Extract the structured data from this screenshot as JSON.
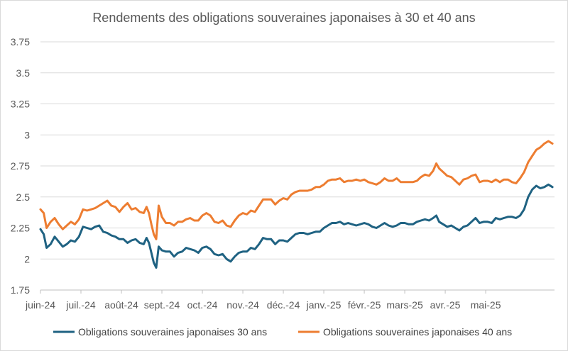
{
  "chart_data": {
    "type": "line",
    "title": "Rendements des obligations souveraines japonaises à 30 et 40 ans",
    "xlabel": "",
    "ylabel": "",
    "ylim": [
      1.75,
      3.75
    ],
    "y_ticks": [
      "1.75",
      "2",
      "2.25",
      "2.5",
      "2.75",
      "3",
      "3.25",
      "3.5",
      "3.75"
    ],
    "x_tick_labels": [
      "juin-24",
      "juil.-24",
      "août-24",
      "sept.-24",
      "oct.-24",
      "nov.-24",
      "déc.-24",
      "janv.-25",
      "févr.-25",
      "mars-25",
      "avr.-25",
      "mai-25"
    ],
    "grid": true,
    "legend_position": "bottom",
    "x_domain": [
      0,
      12.7
    ],
    "series": [
      {
        "name": "Obligations souveraines japonaises 30 ans",
        "color": "#1f6282",
        "points": [
          [
            0.0,
            2.24
          ],
          [
            0.08,
            2.2
          ],
          [
            0.15,
            2.09
          ],
          [
            0.25,
            2.12
          ],
          [
            0.35,
            2.18
          ],
          [
            0.45,
            2.14
          ],
          [
            0.55,
            2.1
          ],
          [
            0.65,
            2.12
          ],
          [
            0.75,
            2.15
          ],
          [
            0.85,
            2.14
          ],
          [
            0.95,
            2.18
          ],
          [
            1.05,
            2.26
          ],
          [
            1.15,
            2.25
          ],
          [
            1.25,
            2.24
          ],
          [
            1.35,
            2.26
          ],
          [
            1.45,
            2.27
          ],
          [
            1.55,
            2.22
          ],
          [
            1.65,
            2.21
          ],
          [
            1.75,
            2.19
          ],
          [
            1.85,
            2.18
          ],
          [
            1.95,
            2.16
          ],
          [
            2.05,
            2.16
          ],
          [
            2.15,
            2.13
          ],
          [
            2.25,
            2.15
          ],
          [
            2.35,
            2.16
          ],
          [
            2.45,
            2.13
          ],
          [
            2.55,
            2.12
          ],
          [
            2.62,
            2.17
          ],
          [
            2.68,
            2.13
          ],
          [
            2.74,
            2.05
          ],
          [
            2.8,
            1.97
          ],
          [
            2.86,
            1.93
          ],
          [
            2.92,
            2.1
          ],
          [
            3.0,
            2.07
          ],
          [
            3.1,
            2.06
          ],
          [
            3.2,
            2.06
          ],
          [
            3.3,
            2.02
          ],
          [
            3.4,
            2.05
          ],
          [
            3.5,
            2.06
          ],
          [
            3.6,
            2.09
          ],
          [
            3.7,
            2.08
          ],
          [
            3.8,
            2.07
          ],
          [
            3.9,
            2.05
          ],
          [
            4.0,
            2.09
          ],
          [
            4.1,
            2.1
          ],
          [
            4.2,
            2.08
          ],
          [
            4.3,
            2.04
          ],
          [
            4.4,
            2.03
          ],
          [
            4.5,
            2.04
          ],
          [
            4.6,
            2.0
          ],
          [
            4.7,
            1.98
          ],
          [
            4.8,
            2.02
          ],
          [
            4.9,
            2.05
          ],
          [
            5.0,
            2.06
          ],
          [
            5.1,
            2.06
          ],
          [
            5.2,
            2.09
          ],
          [
            5.3,
            2.08
          ],
          [
            5.4,
            2.12
          ],
          [
            5.5,
            2.17
          ],
          [
            5.6,
            2.16
          ],
          [
            5.7,
            2.16
          ],
          [
            5.8,
            2.12
          ],
          [
            5.9,
            2.15
          ],
          [
            6.0,
            2.15
          ],
          [
            6.1,
            2.14
          ],
          [
            6.2,
            2.17
          ],
          [
            6.3,
            2.2
          ],
          [
            6.4,
            2.21
          ],
          [
            6.5,
            2.21
          ],
          [
            6.6,
            2.2
          ],
          [
            6.7,
            2.21
          ],
          [
            6.8,
            2.22
          ],
          [
            6.9,
            2.22
          ],
          [
            7.0,
            2.25
          ],
          [
            7.1,
            2.27
          ],
          [
            7.2,
            2.29
          ],
          [
            7.3,
            2.29
          ],
          [
            7.4,
            2.3
          ],
          [
            7.5,
            2.28
          ],
          [
            7.6,
            2.29
          ],
          [
            7.7,
            2.28
          ],
          [
            7.8,
            2.27
          ],
          [
            7.9,
            2.28
          ],
          [
            8.0,
            2.29
          ],
          [
            8.1,
            2.28
          ],
          [
            8.2,
            2.26
          ],
          [
            8.3,
            2.25
          ],
          [
            8.4,
            2.27
          ],
          [
            8.5,
            2.29
          ],
          [
            8.6,
            2.27
          ],
          [
            8.7,
            2.26
          ],
          [
            8.8,
            2.27
          ],
          [
            8.9,
            2.29
          ],
          [
            9.0,
            2.29
          ],
          [
            9.1,
            2.28
          ],
          [
            9.2,
            2.28
          ],
          [
            9.3,
            2.3
          ],
          [
            9.4,
            2.31
          ],
          [
            9.5,
            2.32
          ],
          [
            9.6,
            2.31
          ],
          [
            9.7,
            2.33
          ],
          [
            9.78,
            2.35
          ],
          [
            9.85,
            2.3
          ],
          [
            9.95,
            2.28
          ],
          [
            10.05,
            2.26
          ],
          [
            10.15,
            2.27
          ],
          [
            10.25,
            2.25
          ],
          [
            10.35,
            2.23
          ],
          [
            10.45,
            2.26
          ],
          [
            10.55,
            2.27
          ],
          [
            10.65,
            2.3
          ],
          [
            10.75,
            2.33
          ],
          [
            10.85,
            2.29
          ],
          [
            10.95,
            2.3
          ],
          [
            11.05,
            2.3
          ],
          [
            11.15,
            2.29
          ],
          [
            11.25,
            2.33
          ],
          [
            11.35,
            2.32
          ],
          [
            11.45,
            2.33
          ],
          [
            11.55,
            2.34
          ],
          [
            11.65,
            2.34
          ],
          [
            11.75,
            2.33
          ],
          [
            11.85,
            2.35
          ],
          [
            11.95,
            2.4
          ],
          [
            12.05,
            2.5
          ],
          [
            12.15,
            2.56
          ],
          [
            12.25,
            2.59
          ],
          [
            12.35,
            2.57
          ],
          [
            12.45,
            2.58
          ],
          [
            12.55,
            2.6
          ],
          [
            12.65,
            2.58
          ]
        ]
      },
      {
        "name": "Obligations souveraines japonaises 40 ans",
        "color": "#ed7d31",
        "points": [
          [
            0.0,
            2.4
          ],
          [
            0.08,
            2.37
          ],
          [
            0.15,
            2.25
          ],
          [
            0.25,
            2.3
          ],
          [
            0.35,
            2.33
          ],
          [
            0.45,
            2.28
          ],
          [
            0.55,
            2.24
          ],
          [
            0.65,
            2.27
          ],
          [
            0.75,
            2.3
          ],
          [
            0.85,
            2.28
          ],
          [
            0.95,
            2.32
          ],
          [
            1.05,
            2.4
          ],
          [
            1.15,
            2.39
          ],
          [
            1.25,
            2.4
          ],
          [
            1.35,
            2.41
          ],
          [
            1.45,
            2.43
          ],
          [
            1.55,
            2.45
          ],
          [
            1.65,
            2.47
          ],
          [
            1.75,
            2.43
          ],
          [
            1.85,
            2.42
          ],
          [
            1.95,
            2.38
          ],
          [
            2.05,
            2.42
          ],
          [
            2.15,
            2.45
          ],
          [
            2.25,
            2.4
          ],
          [
            2.35,
            2.41
          ],
          [
            2.45,
            2.38
          ],
          [
            2.55,
            2.37
          ],
          [
            2.62,
            2.42
          ],
          [
            2.68,
            2.37
          ],
          [
            2.74,
            2.28
          ],
          [
            2.8,
            2.2
          ],
          [
            2.86,
            2.16
          ],
          [
            2.92,
            2.43
          ],
          [
            3.0,
            2.34
          ],
          [
            3.1,
            2.29
          ],
          [
            3.2,
            2.29
          ],
          [
            3.3,
            2.27
          ],
          [
            3.4,
            2.3
          ],
          [
            3.5,
            2.3
          ],
          [
            3.6,
            2.32
          ],
          [
            3.7,
            2.33
          ],
          [
            3.8,
            2.31
          ],
          [
            3.9,
            2.31
          ],
          [
            4.0,
            2.35
          ],
          [
            4.1,
            2.37
          ],
          [
            4.2,
            2.35
          ],
          [
            4.3,
            2.3
          ],
          [
            4.4,
            2.29
          ],
          [
            4.5,
            2.31
          ],
          [
            4.6,
            2.27
          ],
          [
            4.7,
            2.26
          ],
          [
            4.8,
            2.31
          ],
          [
            4.9,
            2.35
          ],
          [
            5.0,
            2.37
          ],
          [
            5.1,
            2.36
          ],
          [
            5.2,
            2.39
          ],
          [
            5.3,
            2.38
          ],
          [
            5.4,
            2.43
          ],
          [
            5.5,
            2.48
          ],
          [
            5.6,
            2.48
          ],
          [
            5.7,
            2.48
          ],
          [
            5.8,
            2.44
          ],
          [
            5.9,
            2.47
          ],
          [
            6.0,
            2.49
          ],
          [
            6.1,
            2.48
          ],
          [
            6.2,
            2.52
          ],
          [
            6.3,
            2.54
          ],
          [
            6.4,
            2.55
          ],
          [
            6.5,
            2.55
          ],
          [
            6.6,
            2.55
          ],
          [
            6.7,
            2.56
          ],
          [
            6.8,
            2.58
          ],
          [
            6.9,
            2.58
          ],
          [
            7.0,
            2.6
          ],
          [
            7.1,
            2.63
          ],
          [
            7.2,
            2.64
          ],
          [
            7.3,
            2.64
          ],
          [
            7.4,
            2.65
          ],
          [
            7.5,
            2.62
          ],
          [
            7.6,
            2.63
          ],
          [
            7.7,
            2.63
          ],
          [
            7.8,
            2.64
          ],
          [
            7.9,
            2.63
          ],
          [
            8.0,
            2.64
          ],
          [
            8.1,
            2.62
          ],
          [
            8.2,
            2.61
          ],
          [
            8.3,
            2.6
          ],
          [
            8.4,
            2.62
          ],
          [
            8.5,
            2.65
          ],
          [
            8.6,
            2.63
          ],
          [
            8.7,
            2.63
          ],
          [
            8.8,
            2.65
          ],
          [
            8.9,
            2.62
          ],
          [
            9.0,
            2.62
          ],
          [
            9.1,
            2.62
          ],
          [
            9.2,
            2.62
          ],
          [
            9.3,
            2.63
          ],
          [
            9.4,
            2.66
          ],
          [
            9.5,
            2.68
          ],
          [
            9.6,
            2.67
          ],
          [
            9.7,
            2.71
          ],
          [
            9.78,
            2.77
          ],
          [
            9.85,
            2.73
          ],
          [
            9.95,
            2.7
          ],
          [
            10.05,
            2.67
          ],
          [
            10.15,
            2.66
          ],
          [
            10.25,
            2.63
          ],
          [
            10.35,
            2.6
          ],
          [
            10.45,
            2.64
          ],
          [
            10.55,
            2.65
          ],
          [
            10.65,
            2.67
          ],
          [
            10.75,
            2.68
          ],
          [
            10.85,
            2.62
          ],
          [
            10.95,
            2.63
          ],
          [
            11.05,
            2.63
          ],
          [
            11.15,
            2.62
          ],
          [
            11.25,
            2.64
          ],
          [
            11.35,
            2.62
          ],
          [
            11.45,
            2.64
          ],
          [
            11.55,
            2.64
          ],
          [
            11.65,
            2.62
          ],
          [
            11.75,
            2.61
          ],
          [
            11.85,
            2.65
          ],
          [
            11.95,
            2.7
          ],
          [
            12.05,
            2.78
          ],
          [
            12.15,
            2.83
          ],
          [
            12.25,
            2.88
          ],
          [
            12.35,
            2.9
          ],
          [
            12.45,
            2.93
          ],
          [
            12.55,
            2.95
          ],
          [
            12.65,
            2.93
          ]
        ]
      }
    ]
  }
}
